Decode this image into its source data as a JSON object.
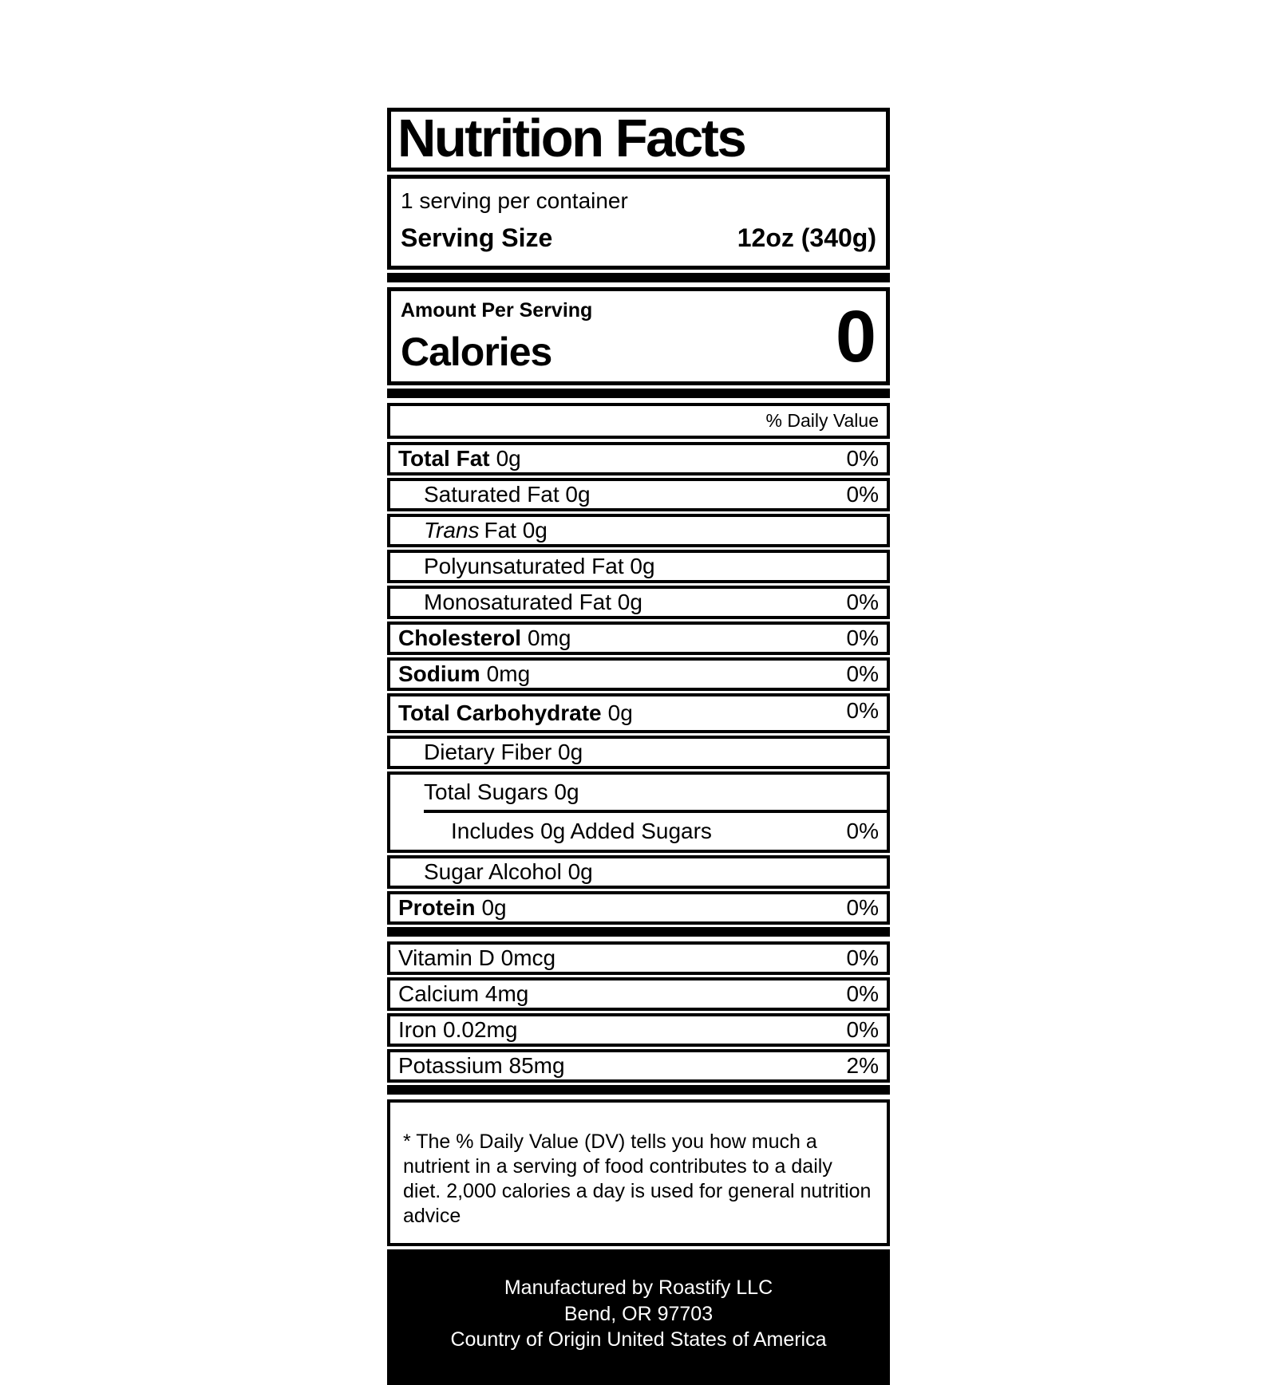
{
  "label": {
    "title": "Nutrition Facts",
    "servings_per_container": "1 serving per container",
    "serving_size_label": "Serving Size",
    "serving_size_value": "12oz (340g)",
    "amount_per_serving": "Amount Per Serving",
    "calories_label": "Calories",
    "calories_value": "0",
    "daily_value_header": "% Daily Value",
    "rows": [
      {
        "id": "total-fat",
        "label_bold": "Total Fat",
        "label_rest": "0g",
        "percent": "0%",
        "indent": 0
      },
      {
        "id": "saturated-fat",
        "label_rest": "Saturated Fat 0g",
        "percent": "0%",
        "indent": 1
      },
      {
        "id": "trans-fat",
        "label_italic": "Trans",
        "label_rest": "Fat 0g",
        "percent": "",
        "indent": 1
      },
      {
        "id": "polyunsaturated-fat",
        "label_rest": "Polyunsaturated Fat 0g",
        "percent": "",
        "indent": 1
      },
      {
        "id": "monosaturated-fat",
        "label_rest": "Monosaturated Fat 0g",
        "percent": "0%",
        "indent": 1
      },
      {
        "id": "cholesterol",
        "label_bold": "Cholesterol",
        "label_rest": "0mg",
        "percent": "0%",
        "indent": 0
      },
      {
        "id": "sodium",
        "label_bold": "Sodium",
        "label_rest": "0mg",
        "percent": "0%",
        "indent": 0
      },
      {
        "id": "total-carbohydrate",
        "label_bold": "Total Carbohydrate",
        "label_rest": "0g",
        "percent": "0%",
        "indent": 0,
        "percent_top": true
      },
      {
        "id": "dietary-fiber",
        "label_rest": "Dietary Fiber 0g",
        "percent": "",
        "indent": 1
      },
      {
        "id": "sugars",
        "type": "compound",
        "line1": "Total Sugars 0g",
        "line2": "Includes 0g Added Sugars",
        "percent": "0%"
      },
      {
        "id": "sugar-alcohol",
        "label_rest": "Sugar Alcohol 0g",
        "percent": "",
        "indent": 1
      },
      {
        "id": "protein",
        "label_bold": "Protein",
        "label_rest": "0g",
        "percent": "0%",
        "indent": 0
      }
    ],
    "vitamin_rows": [
      {
        "id": "vitamin-d",
        "label": "Vitamin D 0mcg",
        "percent": "0%"
      },
      {
        "id": "calcium",
        "label": "Calcium 4mg",
        "percent": "0%"
      },
      {
        "id": "iron",
        "label": "Iron 0.02mg",
        "percent": "0%"
      },
      {
        "id": "potassium",
        "label": "Potassium 85mg",
        "percent": "2%"
      }
    ],
    "disclaimer": "* The % Daily Value (DV) tells you how much a nutrient in a serving of food contributes to a daily diet. 2,000 calories a day is used for general nutrition advice",
    "footer_lines": [
      "Manufactured by Roastify LLC",
      "Bend, OR 97703",
      "Country of Origin United States of America"
    ],
    "colors": {
      "ink": "#000000",
      "paper": "#ffffff"
    }
  }
}
